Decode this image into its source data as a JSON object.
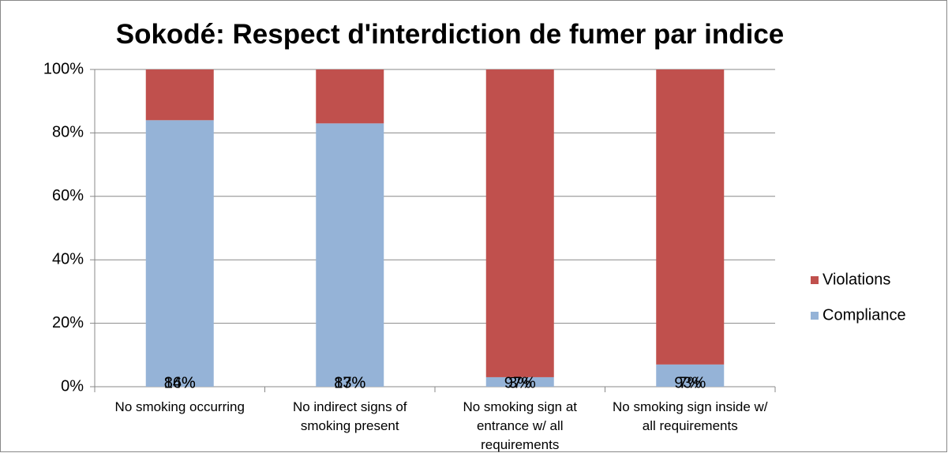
{
  "chart_data": {
    "type": "stacked-bar",
    "title": "Sokodé: Respect d'interdiction de fumer par indice",
    "categories": [
      "No smoking occurring",
      "No indirect signs of smoking present",
      "No smoking sign at entrance w/ all requirements",
      "No smoking sign inside w/ all requirements"
    ],
    "series": [
      {
        "name": "Compliance",
        "color": "#95b3d7",
        "values": [
          84,
          83,
          3,
          7
        ],
        "value_labels": [
          "84%",
          "83%",
          "3%",
          "7%"
        ]
      },
      {
        "name": "Violations",
        "color": "#c0504d",
        "values": [
          16,
          17,
          97,
          93
        ],
        "value_labels": [
          "16%",
          "17%",
          "97%",
          "93%"
        ]
      }
    ],
    "ylim": [
      0,
      100
    ],
    "yticks": [
      {
        "value": 0,
        "label": "0%"
      },
      {
        "value": 20,
        "label": "20%"
      },
      {
        "value": 40,
        "label": "40%"
      },
      {
        "value": 60,
        "label": "60%"
      },
      {
        "value": 80,
        "label": "80%"
      },
      {
        "value": 100,
        "label": "100%"
      }
    ],
    "grid": true,
    "legend": "right"
  }
}
